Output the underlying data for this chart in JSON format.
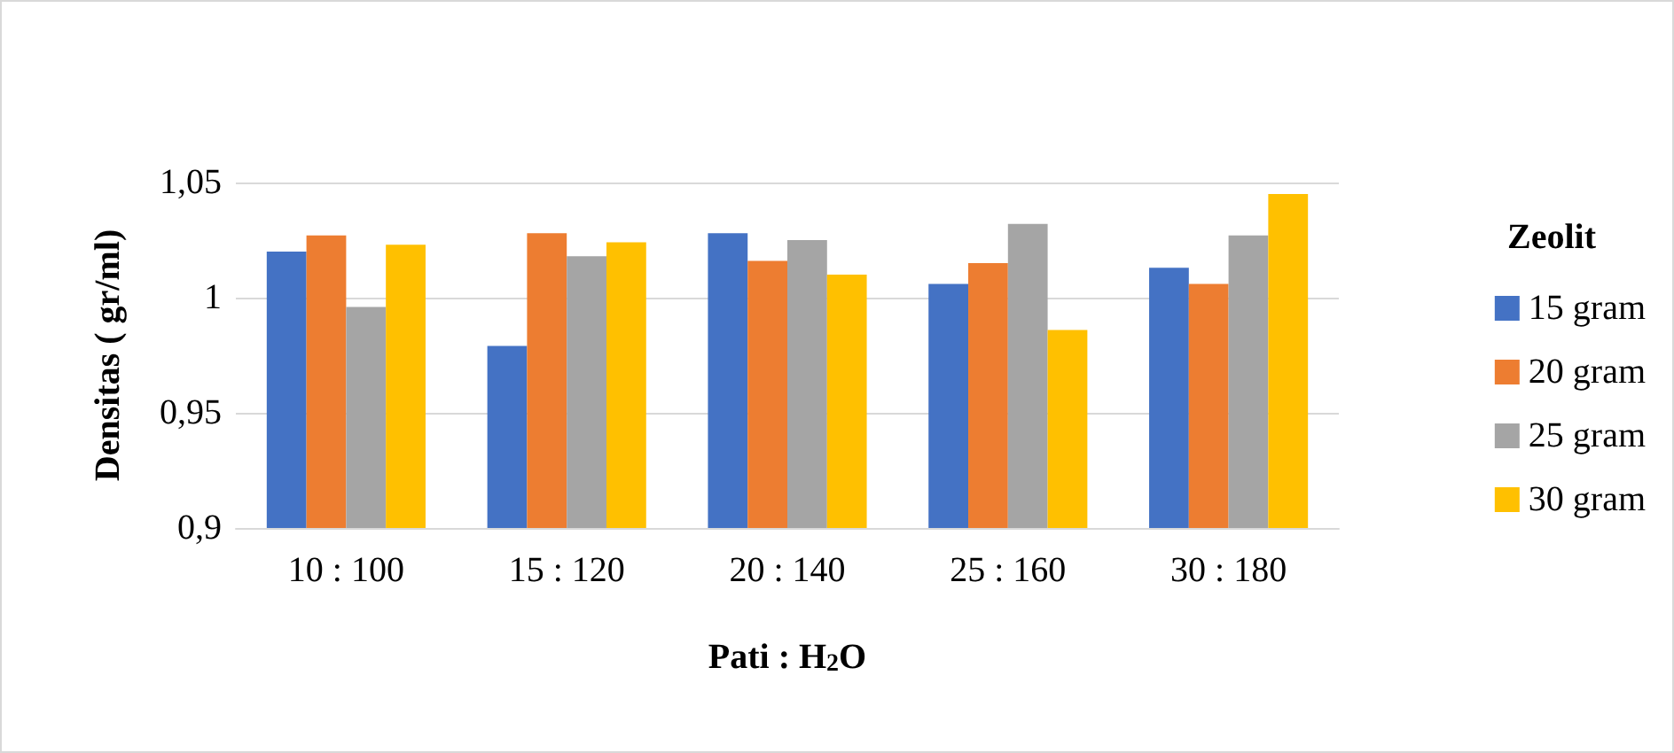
{
  "chart_data": {
    "type": "bar",
    "xlabel": "Pati : H$_{2}$O",
    "ylabel": "Densitas ( gr/ml)",
    "legend_title": "Zeolit",
    "categories": [
      "10 : 100",
      "15 : 120",
      "20 : 140",
      "25 : 160",
      "30 : 180"
    ],
    "series": [
      {
        "name": "15 gram",
        "color": "#4472c4",
        "values": [
          1.02,
          0.979,
          1.028,
          1.006,
          1.013
        ]
      },
      {
        "name": "20 gram",
        "color": "#ed7d31",
        "values": [
          1.027,
          1.028,
          1.016,
          1.015,
          1.006
        ]
      },
      {
        "name": "25 gram",
        "color": "#a5a5a5",
        "values": [
          0.996,
          1.018,
          1.025,
          1.032,
          1.027
        ]
      },
      {
        "name": "30 gram",
        "color": "#ffc000",
        "values": [
          1.023,
          1.024,
          1.01,
          0.986,
          1.045
        ]
      }
    ],
    "ylim": [
      0.9,
      1.05
    ],
    "yticks": [
      {
        "value": 0.9,
        "label": "0,9"
      },
      {
        "value": 0.95,
        "label": "0,95"
      },
      {
        "value": 1,
        "label": "1"
      },
      {
        "value": 1.05,
        "label": "1,05"
      }
    ],
    "grid": "y",
    "legend": "right"
  }
}
